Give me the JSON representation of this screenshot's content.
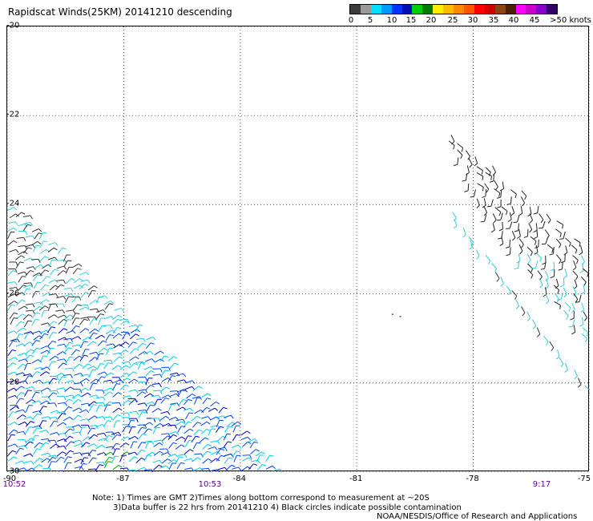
{
  "title": "Rapidscat Winds(25KM) 20141210 descending",
  "colorbar": {
    "colors": [
      "#3c3c3c",
      "#9a9a9a",
      "#00e0ff",
      "#0099ff",
      "#0033ff",
      "#0010b0",
      "#00cc00",
      "#007a00",
      "#ffee00",
      "#ffbb00",
      "#ff8800",
      "#ff5500",
      "#ff0000",
      "#d00000",
      "#8b4513",
      "#4a2000",
      "#ff00ff",
      "#cc00cc",
      "#8800cc",
      "#330066"
    ],
    "labels": [
      "0",
      "5",
      "10",
      "15",
      "20",
      "25",
      "30",
      "35",
      "40",
      "45",
      ">50 knots"
    ]
  },
  "y_labels": [
    "-20",
    "-22",
    "-24",
    "-26",
    "-28",
    "-30"
  ],
  "x_labels": [
    "-90",
    "-87",
    "-84",
    "-81",
    "-78",
    "-75"
  ],
  "times": [
    "10:52",
    "10:53",
    "9:17"
  ],
  "notes": [
    "Note: 1) Times are GMT 2)Times along bottom correspond to measurement at ~20S",
    "3)Data buffer is 22 hrs from 20141210 4) Black circles indicate possible contamination",
    "NOAA/NESDIS/Office of Research and Applications"
  ],
  "map": {
    "lon_range": [
      -90,
      -75
    ],
    "lat_range": [
      -30,
      -20
    ],
    "grid": "dotted",
    "swaths": [
      {
        "name": "left",
        "polygon": [
          [
            -90,
            -23.9
          ],
          [
            -83.0,
            -30
          ],
          [
            -90,
            -30
          ]
        ]
      },
      {
        "name": "right-upper",
        "polygon": [
          [
            -79.0,
            -22.0
          ],
          [
            -75,
            -25.0
          ],
          [
            -75,
            -27.3
          ],
          [
            -77.8,
            -24.2
          ]
        ]
      },
      {
        "name": "right-lower",
        "polygon": [
          [
            -78.6,
            -24.2
          ],
          [
            -75,
            -27.8
          ],
          [
            -75,
            -28.6
          ],
          [
            -78.9,
            -24.3
          ]
        ]
      }
    ],
    "markers": [
      [
        -80.1,
        -26.45
      ],
      [
        -79.9,
        -26.5
      ]
    ]
  }
}
